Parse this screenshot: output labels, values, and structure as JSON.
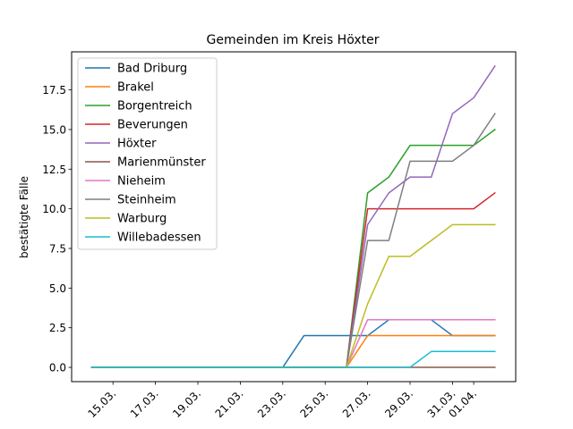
{
  "chart_data": {
    "type": "line",
    "title": "Gemeinden im Kreis Höxter",
    "xlabel": "",
    "ylabel": "bestätigte Fälle",
    "x": [
      "14.03.",
      "15.03.",
      "16.03.",
      "17.03.",
      "18.03.",
      "19.03.",
      "20.03.",
      "21.03.",
      "22.03.",
      "23.03.",
      "24.03.",
      "25.03.",
      "26.03.",
      "27.03.",
      "28.03.",
      "29.03.",
      "30.03.",
      "31.03.",
      "01.04.",
      "02.04."
    ],
    "xticks": [
      "15.03.",
      "17.03.",
      "19.03.",
      "21.03.",
      "23.03.",
      "25.03.",
      "27.03.",
      "29.03.",
      "31.03.",
      "01.04."
    ],
    "yticks": [
      "0.0",
      "2.5",
      "5.0",
      "7.5",
      "10.0",
      "12.5",
      "15.0",
      "17.5"
    ],
    "ylim": [
      -0.9,
      19.9
    ],
    "legend_position": "upper-left",
    "grid": false,
    "series": [
      {
        "name": "Bad Driburg",
        "color": "#1f77b4",
        "values": [
          0,
          0,
          0,
          0,
          0,
          0,
          0,
          0,
          0,
          0,
          2,
          2,
          2,
          2,
          3,
          3,
          3,
          2,
          2,
          2
        ]
      },
      {
        "name": "Brakel",
        "color": "#ff7f0e",
        "values": [
          0,
          0,
          0,
          0,
          0,
          0,
          0,
          0,
          0,
          0,
          0,
          0,
          0,
          2,
          2,
          2,
          2,
          2,
          2,
          2
        ]
      },
      {
        "name": "Borgentreich",
        "color": "#2ca02c",
        "values": [
          0,
          0,
          0,
          0,
          0,
          0,
          0,
          0,
          0,
          0,
          0,
          0,
          0,
          11,
          12,
          14,
          14,
          14,
          14,
          15
        ]
      },
      {
        "name": "Beverungen",
        "color": "#d62728",
        "values": [
          0,
          0,
          0,
          0,
          0,
          0,
          0,
          0,
          0,
          0,
          0,
          0,
          0,
          10,
          10,
          10,
          10,
          10,
          10,
          11
        ]
      },
      {
        "name": "Höxter",
        "color": "#9467bd",
        "values": [
          0,
          0,
          0,
          0,
          0,
          0,
          0,
          0,
          0,
          0,
          0,
          0,
          0,
          9,
          11,
          12,
          12,
          16,
          17,
          19
        ]
      },
      {
        "name": "Marienmünster",
        "color": "#8c564b",
        "values": [
          0,
          0,
          0,
          0,
          0,
          0,
          0,
          0,
          0,
          0,
          0,
          0,
          0,
          0,
          0,
          0,
          0,
          0,
          0,
          0
        ]
      },
      {
        "name": "Nieheim",
        "color": "#e377c2",
        "values": [
          0,
          0,
          0,
          0,
          0,
          0,
          0,
          0,
          0,
          0,
          0,
          0,
          0,
          3,
          3,
          3,
          3,
          3,
          3,
          3
        ]
      },
      {
        "name": "Steinheim",
        "color": "#7f7f7f",
        "values": [
          0,
          0,
          0,
          0,
          0,
          0,
          0,
          0,
          0,
          0,
          0,
          0,
          0,
          8,
          8,
          13,
          13,
          13,
          14,
          16
        ]
      },
      {
        "name": "Warburg",
        "color": "#bcbd22",
        "values": [
          0,
          0,
          0,
          0,
          0,
          0,
          0,
          0,
          0,
          0,
          0,
          0,
          0,
          4,
          7,
          7,
          8,
          9,
          9,
          9
        ]
      },
      {
        "name": "Willebadessen",
        "color": "#17becf",
        "values": [
          0,
          0,
          0,
          0,
          0,
          0,
          0,
          0,
          0,
          0,
          0,
          0,
          0,
          0,
          0,
          0,
          1,
          1,
          1,
          1
        ]
      }
    ]
  }
}
